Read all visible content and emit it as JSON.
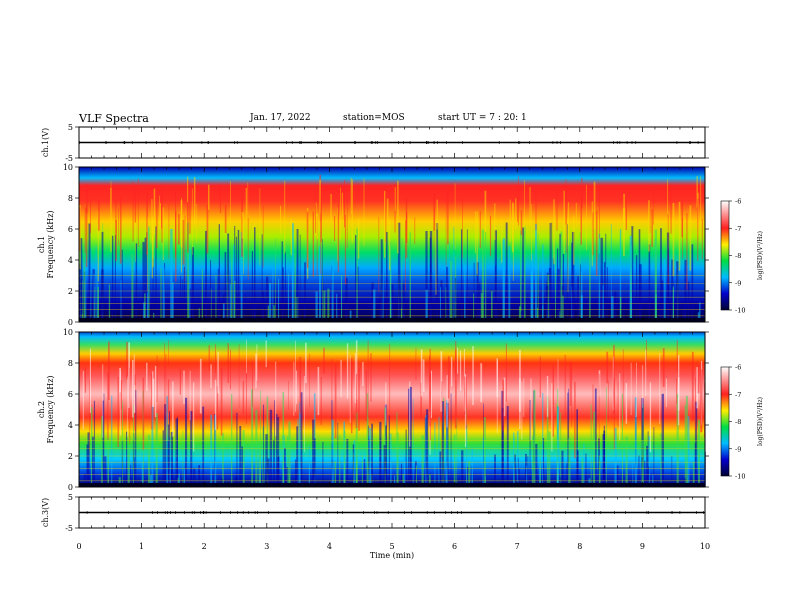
{
  "header": {
    "title": "VLF Spectra",
    "date": "Jan. 17, 2022",
    "station": "station=MOS",
    "start": "start UT =  7 : 20: 1"
  },
  "chart_data": [
    {
      "type": "line",
      "panel": "ch1-voltage",
      "ylabel": "ch.1(V)",
      "ylim": [
        -5,
        5
      ],
      "yticks": [
        "5",
        "-5"
      ],
      "x": [
        0,
        10
      ],
      "values": [
        0,
        0
      ]
    },
    {
      "type": "heatmap",
      "panel": "ch1-spectrogram",
      "ylabel": "ch.1\nFrequency (kHz)",
      "ylim": [
        0,
        10
      ],
      "yticks": [
        "0",
        "2",
        "4",
        "6",
        "8",
        "10"
      ],
      "xlim": [
        0,
        10
      ],
      "description_levels": "log(PSD) colour scale",
      "colorbar": {
        "label": "log(PSD)(V²/Hz)",
        "range": [
          -10,
          -6
        ],
        "ticks": [
          "-6",
          "-7",
          "-8",
          "-9",
          "-10"
        ]
      }
    },
    {
      "type": "heatmap",
      "panel": "ch2-spectrogram",
      "ylabel": "ch.2\nFrequency (kHz)",
      "ylim": [
        0,
        10
      ],
      "yticks": [
        "0",
        "2",
        "4",
        "6",
        "8",
        "10"
      ],
      "xlim": [
        0,
        10
      ],
      "colorbar": {
        "label": "log(PSD)(V²/Hz)",
        "range": [
          -10,
          -6
        ],
        "ticks": [
          "-6",
          "-7",
          "-8",
          "-9",
          "-10"
        ]
      }
    },
    {
      "type": "line",
      "panel": "ch3-voltage",
      "ylabel": "ch.3(V)",
      "ylim": [
        -5,
        5
      ],
      "yticks": [
        "5",
        "-5"
      ],
      "x": [
        0,
        10
      ],
      "values": [
        0,
        0
      ]
    }
  ],
  "xaxis": {
    "label": "Time (min)",
    "ticks": [
      "0",
      "1",
      "2",
      "3",
      "4",
      "5",
      "6",
      "7",
      "8",
      "9",
      "10"
    ],
    "range": [
      0,
      10
    ]
  },
  "colors": {
    "dark_blue": "#00008b",
    "blue": "#0033ff",
    "cyan": "#00e5ff",
    "green": "#00dd00",
    "yellow": "#ffee00",
    "red": "#ff2020",
    "white_red": "#ffdddd"
  }
}
